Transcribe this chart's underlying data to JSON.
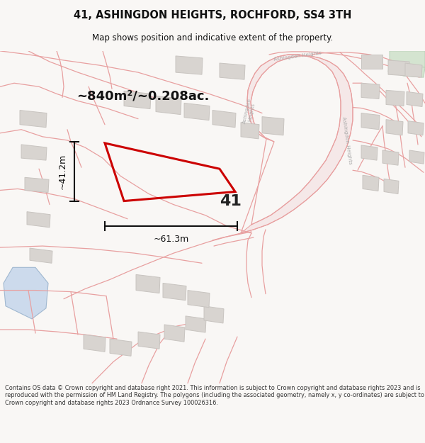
{
  "title_line1": "41, ASHINGDON HEIGHTS, ROCHFORD, SS4 3TH",
  "title_line2": "Map shows position and indicative extent of the property.",
  "area_label": "~840m²/~0.208ac.",
  "dim_vertical": "~41.2m",
  "dim_horizontal": "~61.3m",
  "plot_number": "41",
  "footer_text": "Contains OS data © Crown copyright and database right 2021. This information is subject to Crown copyright and database rights 2023 and is reproduced with the permission of HM Land Registry. The polygons (including the associated geometry, namely x, y co-ordinates) are subject to Crown copyright and database rights 2023 Ordnance Survey 100026316.",
  "bg_color": "#f9f7f5",
  "map_bg": "#ffffff",
  "road_stroke": "#e8a0a0",
  "parcel_stroke": "#e8a0a0",
  "building_fill": "#d8d4d0",
  "building_stroke": "#c8c4c0",
  "green_fill": "#d4e4d0",
  "green_stroke": "#b8d0b8",
  "blue_fill": "#ccdaec",
  "blue_stroke": "#a0b8d0",
  "highlight_color": "#cc0000",
  "dim_color": "#111111",
  "label_color": "#bbbbbb",
  "title_color": "#111111",
  "footer_color": "#333333"
}
